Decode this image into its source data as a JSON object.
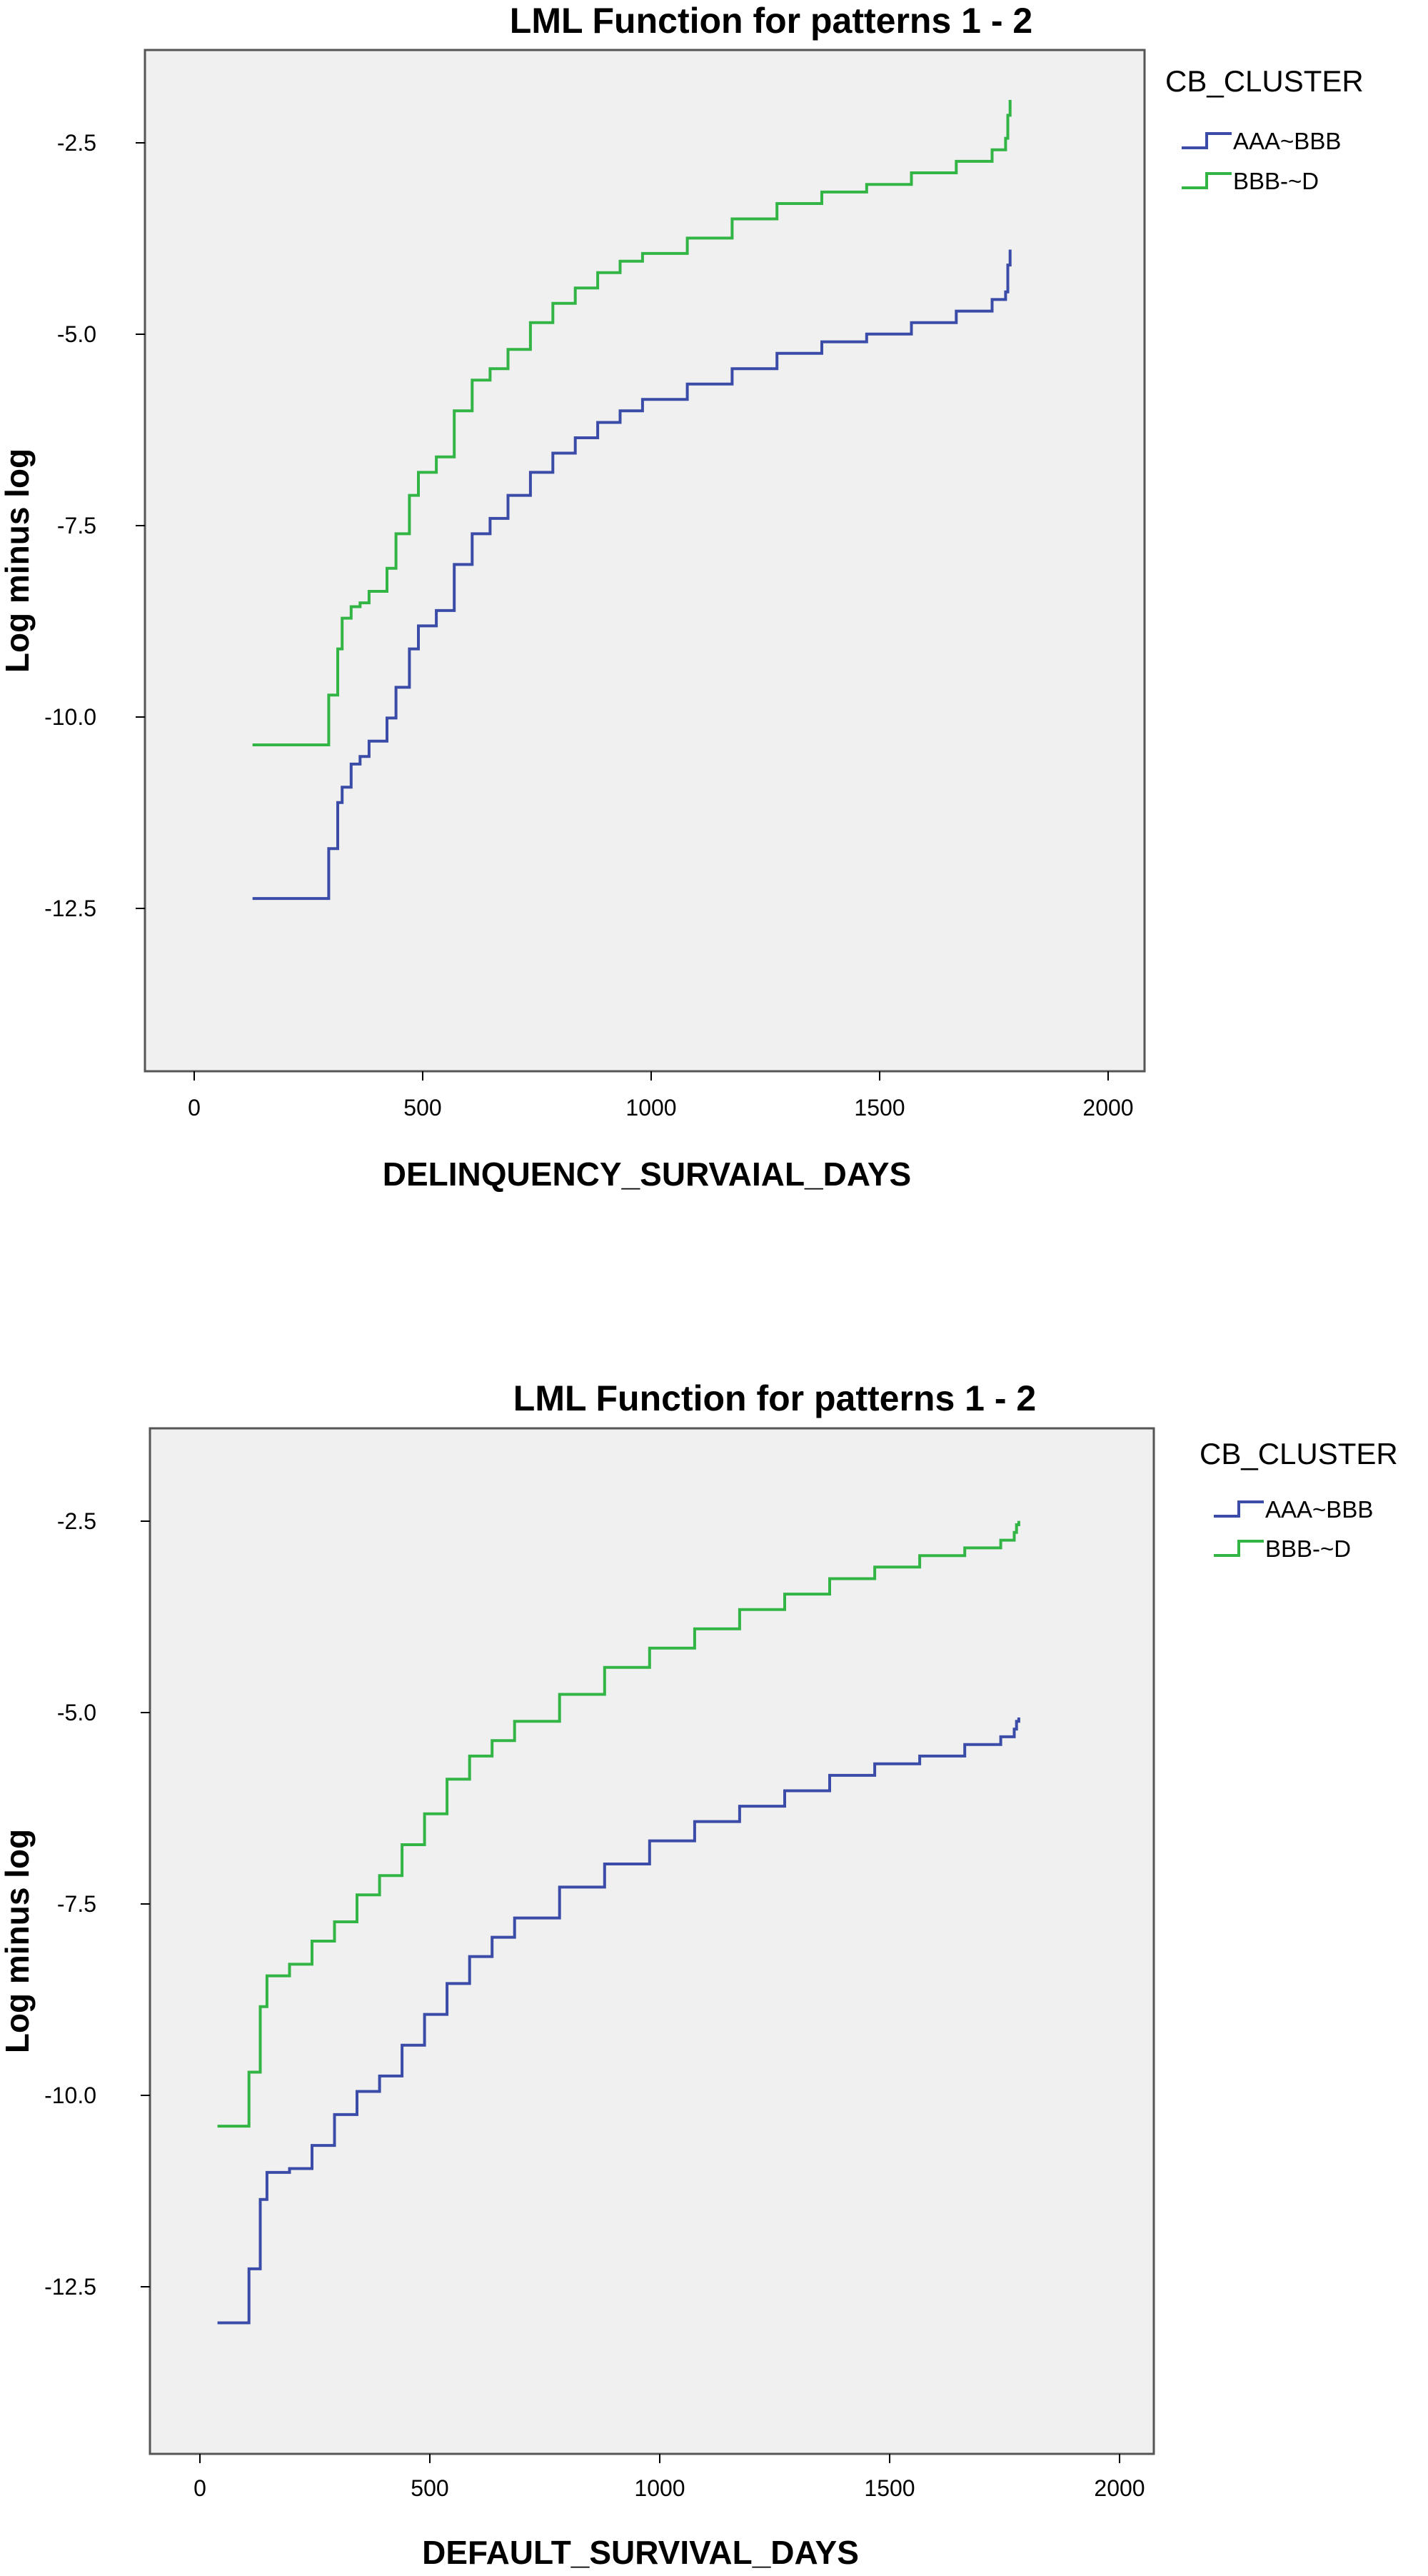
{
  "chart_data": [
    {
      "type": "line",
      "title": "LML Function for patterns 1 - 2",
      "xlabel": "DELINQUENCY_SURVAIAL_DAYS",
      "ylabel": "Log minus log",
      "xlim": [
        -110,
        2120
      ],
      "ylim": [
        -14.5,
        -1.2
      ],
      "xticks": [
        0,
        500,
        1000,
        1500,
        2000
      ],
      "yticks": [
        -2.5,
        -5.0,
        -7.5,
        -10.0,
        -12.5
      ],
      "xtick_labels": [
        "0",
        "500",
        "1000",
        "1500",
        "2000"
      ],
      "ytick_labels": [
        "-2.5",
        "-5.0",
        "-7.5",
        "-10.0",
        "-12.5"
      ],
      "grid": false,
      "legend_title": "CB_CLUSTER",
      "legend_position": "right",
      "series": [
        {
          "name": "AAA~BBB",
          "color": "#3b4ba8",
          "x": [
            130,
            295,
            300,
            320,
            330,
            350,
            370,
            390,
            410,
            430,
            450,
            480,
            500,
            540,
            580,
            620,
            660,
            700,
            750,
            800,
            850,
            900,
            950,
            1000,
            1100,
            1200,
            1300,
            1400,
            1500,
            1600,
            1700,
            1780,
            1810,
            1815,
            1820
          ],
          "y": [
            -12.25,
            -12.25,
            -11.6,
            -11.0,
            -10.8,
            -10.5,
            -10.4,
            -10.2,
            -10.2,
            -9.9,
            -9.5,
            -9.0,
            -8.7,
            -8.5,
            -7.9,
            -7.5,
            -7.3,
            -7.0,
            -6.7,
            -6.45,
            -6.25,
            -6.05,
            -5.9,
            -5.75,
            -5.55,
            -5.35,
            -5.15,
            -5.0,
            -4.9,
            -4.75,
            -4.6,
            -4.45,
            -4.35,
            -4.0,
            -3.8
          ]
        },
        {
          "name": "BBB-~D",
          "color": "#33b545",
          "x": [
            130,
            295,
            300,
            320,
            330,
            350,
            370,
            390,
            410,
            430,
            450,
            480,
            500,
            540,
            580,
            620,
            660,
            700,
            750,
            800,
            850,
            900,
            950,
            1000,
            1100,
            1200,
            1300,
            1400,
            1500,
            1600,
            1700,
            1780,
            1810,
            1815,
            1820
          ],
          "y": [
            -10.25,
            -10.25,
            -9.6,
            -9.0,
            -8.6,
            -8.45,
            -8.4,
            -8.25,
            -8.25,
            -7.95,
            -7.5,
            -7.0,
            -6.7,
            -6.5,
            -5.9,
            -5.5,
            -5.35,
            -5.1,
            -4.75,
            -4.5,
            -4.3,
            -4.1,
            -3.95,
            -3.85,
            -3.65,
            -3.4,
            -3.2,
            -3.05,
            -2.95,
            -2.8,
            -2.65,
            -2.5,
            -2.35,
            -2.05,
            -1.85
          ]
        }
      ]
    },
    {
      "type": "line",
      "title": "LML Function for patterns 1 - 2",
      "xlabel": "DEFAULT_SURVIVAL_DAYS",
      "ylabel": "Log minus log",
      "xlim": [
        -110,
        2120
      ],
      "ylim": [
        -14.5,
        -1.2
      ],
      "xticks": [
        0,
        500,
        1000,
        1500,
        2000
      ],
      "yticks": [
        -2.5,
        -5.0,
        -7.5,
        -10.0,
        -12.5
      ],
      "xtick_labels": [
        "0",
        "500",
        "1000",
        "1500",
        "2000"
      ],
      "ytick_labels": [
        "-2.5",
        "-5.0",
        "-7.5",
        "-10.0",
        "-12.5"
      ],
      "grid": false,
      "legend_title": "CB_CLUSTER",
      "legend_position": "right",
      "series": [
        {
          "name": "AAA~BBB",
          "color": "#3b4ba8",
          "x": [
            40,
            105,
            110,
            125,
            135,
            150,
            200,
            250,
            300,
            350,
            400,
            450,
            500,
            550,
            600,
            650,
            700,
            800,
            900,
            1000,
            1100,
            1200,
            1300,
            1400,
            1500,
            1600,
            1700,
            1780,
            1810,
            1815,
            1820
          ],
          "y": [
            -12.8,
            -12.8,
            -12.1,
            -12.1,
            -11.2,
            -10.85,
            -10.8,
            -10.5,
            -10.1,
            -9.8,
            -9.6,
            -9.2,
            -8.8,
            -8.4,
            -8.05,
            -7.8,
            -7.55,
            -7.15,
            -6.85,
            -6.55,
            -6.3,
            -6.1,
            -5.9,
            -5.7,
            -5.55,
            -5.45,
            -5.3,
            -5.2,
            -5.1,
            -5.0,
            -4.95
          ]
        },
        {
          "name": "BBB-~D",
          "color": "#33b545",
          "x": [
            40,
            105,
            110,
            125,
            135,
            150,
            200,
            250,
            300,
            350,
            400,
            450,
            500,
            550,
            600,
            650,
            700,
            800,
            900,
            1000,
            1100,
            1200,
            1300,
            1400,
            1500,
            1600,
            1700,
            1780,
            1810,
            1815,
            1820
          ],
          "y": [
            -10.25,
            -10.25,
            -9.55,
            -9.55,
            -8.7,
            -8.3,
            -8.15,
            -7.85,
            -7.6,
            -7.25,
            -7.0,
            -6.6,
            -6.2,
            -5.75,
            -5.45,
            -5.25,
            -5.0,
            -4.65,
            -4.3,
            -4.05,
            -3.8,
            -3.55,
            -3.35,
            -3.15,
            -3.0,
            -2.85,
            -2.75,
            -2.65,
            -2.55,
            -2.45,
            -2.4
          ]
        }
      ]
    }
  ]
}
